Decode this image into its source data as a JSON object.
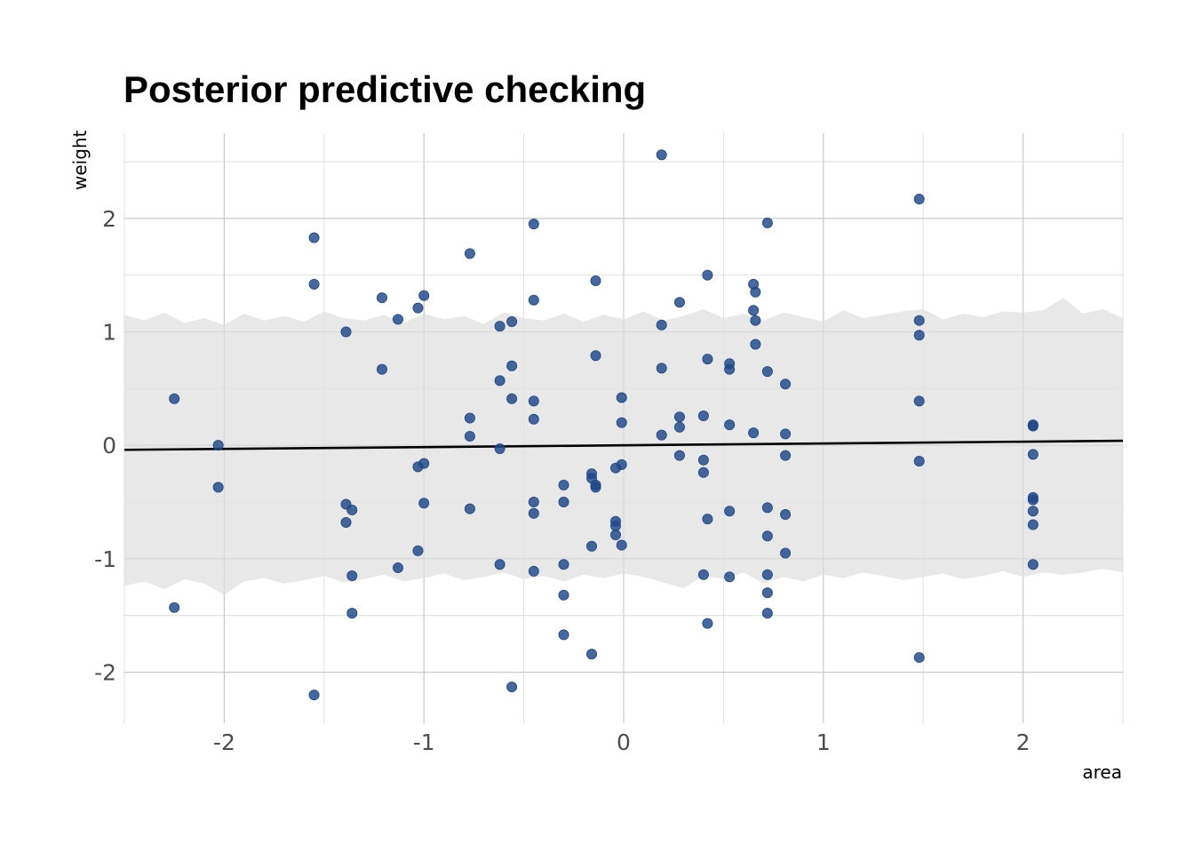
{
  "chart_data": {
    "type": "scatter",
    "title": "Posterior predictive checking",
    "xlabel": "area",
    "ylabel": "weight",
    "xlim": [
      -2.5,
      2.5
    ],
    "ylim": [
      -2.45,
      2.75
    ],
    "grid": true,
    "legend": "none",
    "x_ticks": [
      -2,
      -1,
      0,
      1,
      2
    ],
    "x_tick_labels": [
      "-2",
      "-1",
      "0",
      "1",
      "2"
    ],
    "y_ticks": [
      -2,
      -1,
      0,
      1,
      2
    ],
    "y_tick_labels": [
      "-2",
      "-1",
      "0",
      "1",
      "2"
    ],
    "colors": {
      "points": "#1f4788",
      "band": "#e8e8e8",
      "line": "#000000"
    },
    "regression_line": {
      "x": [
        -2.5,
        2.5
      ],
      "y": [
        -0.04,
        0.04
      ]
    },
    "prediction_band": {
      "x": [
        -2.5,
        -2.4,
        -2.3,
        -2.2,
        -2.1,
        -2.0,
        -1.9,
        -1.8,
        -1.7,
        -1.6,
        -1.5,
        -1.4,
        -1.3,
        -1.2,
        -1.1,
        -1.0,
        -0.9,
        -0.8,
        -0.7,
        -0.6,
        -0.5,
        -0.4,
        -0.3,
        -0.2,
        -0.1,
        0.0,
        0.1,
        0.2,
        0.3,
        0.4,
        0.5,
        0.6,
        0.7,
        0.8,
        0.9,
        1.0,
        1.1,
        1.2,
        1.3,
        1.4,
        1.5,
        1.6,
        1.7,
        1.8,
        1.9,
        2.0,
        2.1,
        2.2,
        2.3,
        2.4,
        2.5
      ],
      "upper": [
        1.15,
        1.1,
        1.17,
        1.08,
        1.12,
        1.06,
        1.16,
        1.1,
        1.14,
        1.09,
        1.18,
        1.12,
        1.1,
        1.15,
        1.08,
        1.16,
        1.11,
        1.14,
        1.07,
        1.17,
        1.12,
        1.1,
        1.16,
        1.09,
        1.15,
        1.11,
        1.18,
        1.1,
        1.14,
        1.2,
        1.12,
        1.16,
        1.1,
        1.17,
        1.13,
        1.09,
        1.19,
        1.12,
        1.15,
        1.18,
        1.2,
        1.11,
        1.16,
        1.13,
        1.18,
        1.17,
        1.19,
        1.3,
        1.16,
        1.2,
        1.12
      ],
      "lower": [
        -1.24,
        -1.2,
        -1.27,
        -1.18,
        -1.22,
        -1.32,
        -1.2,
        -1.17,
        -1.22,
        -1.19,
        -1.15,
        -1.21,
        -1.18,
        -1.14,
        -1.2,
        -1.17,
        -1.13,
        -1.19,
        -1.16,
        -1.12,
        -1.18,
        -1.15,
        -1.2,
        -1.14,
        -1.17,
        -1.13,
        -1.16,
        -1.21,
        -1.26,
        -1.15,
        -1.18,
        -1.12,
        -1.22,
        -1.16,
        -1.2,
        -1.14,
        -1.17,
        -1.12,
        -1.15,
        -1.19,
        -1.16,
        -1.13,
        -1.18,
        -1.15,
        -1.11,
        -1.16,
        -1.12,
        -1.14,
        -1.12,
        -1.09,
        -1.12
      ]
    },
    "points": [
      {
        "x": -2.25,
        "y": 0.41
      },
      {
        "x": -2.25,
        "y": -1.43
      },
      {
        "x": -2.03,
        "y": 0.0
      },
      {
        "x": -2.03,
        "y": -0.37
      },
      {
        "x": -1.55,
        "y": 1.83
      },
      {
        "x": -1.55,
        "y": 1.42
      },
      {
        "x": -1.55,
        "y": -2.2
      },
      {
        "x": -1.39,
        "y": 1.0
      },
      {
        "x": -1.39,
        "y": -0.52
      },
      {
        "x": -1.39,
        "y": -0.68
      },
      {
        "x": -1.36,
        "y": -0.57
      },
      {
        "x": -1.36,
        "y": -1.15
      },
      {
        "x": -1.36,
        "y": -1.48
      },
      {
        "x": -1.21,
        "y": 1.3
      },
      {
        "x": -1.21,
        "y": 0.67
      },
      {
        "x": -1.13,
        "y": 1.11
      },
      {
        "x": -1.13,
        "y": -1.08
      },
      {
        "x": -1.03,
        "y": 1.21
      },
      {
        "x": -1.03,
        "y": -0.19
      },
      {
        "x": -1.03,
        "y": -0.93
      },
      {
        "x": -1.0,
        "y": 1.32
      },
      {
        "x": -1.0,
        "y": -0.16
      },
      {
        "x": -1.0,
        "y": -0.51
      },
      {
        "x": -0.77,
        "y": 1.69
      },
      {
        "x": -0.77,
        "y": 0.24
      },
      {
        "x": -0.77,
        "y": 0.08
      },
      {
        "x": -0.77,
        "y": -0.56
      },
      {
        "x": -0.62,
        "y": 1.05
      },
      {
        "x": -0.62,
        "y": 0.57
      },
      {
        "x": -0.62,
        "y": -0.03
      },
      {
        "x": -0.62,
        "y": -1.05
      },
      {
        "x": -0.56,
        "y": 1.09
      },
      {
        "x": -0.56,
        "y": 0.7
      },
      {
        "x": -0.56,
        "y": 0.41
      },
      {
        "x": -0.56,
        "y": -2.13
      },
      {
        "x": -0.45,
        "y": 1.95
      },
      {
        "x": -0.45,
        "y": 1.28
      },
      {
        "x": -0.45,
        "y": 0.39
      },
      {
        "x": -0.45,
        "y": 0.23
      },
      {
        "x": -0.45,
        "y": -0.5
      },
      {
        "x": -0.45,
        "y": -0.6
      },
      {
        "x": -0.45,
        "y": -1.11
      },
      {
        "x": -0.3,
        "y": -0.35
      },
      {
        "x": -0.3,
        "y": -0.5
      },
      {
        "x": -0.3,
        "y": -1.05
      },
      {
        "x": -0.3,
        "y": -1.32
      },
      {
        "x": -0.3,
        "y": -1.67
      },
      {
        "x": -0.16,
        "y": -0.25
      },
      {
        "x": -0.16,
        "y": -0.29
      },
      {
        "x": -0.16,
        "y": -0.89
      },
      {
        "x": -0.16,
        "y": -1.84
      },
      {
        "x": -0.14,
        "y": 1.45
      },
      {
        "x": -0.14,
        "y": 0.79
      },
      {
        "x": -0.14,
        "y": -0.35
      },
      {
        "x": -0.14,
        "y": -0.37
      },
      {
        "x": -0.04,
        "y": -0.2
      },
      {
        "x": -0.04,
        "y": -0.67
      },
      {
        "x": -0.04,
        "y": -0.71
      },
      {
        "x": -0.04,
        "y": -0.79
      },
      {
        "x": -0.01,
        "y": 0.42
      },
      {
        "x": -0.01,
        "y": 0.2
      },
      {
        "x": -0.01,
        "y": -0.17
      },
      {
        "x": -0.01,
        "y": -0.88
      },
      {
        "x": 0.19,
        "y": 2.56
      },
      {
        "x": 0.19,
        "y": 1.06
      },
      {
        "x": 0.19,
        "y": 0.68
      },
      {
        "x": 0.19,
        "y": 0.09
      },
      {
        "x": 0.28,
        "y": 1.26
      },
      {
        "x": 0.28,
        "y": 0.25
      },
      {
        "x": 0.28,
        "y": 0.16
      },
      {
        "x": 0.28,
        "y": -0.09
      },
      {
        "x": 0.4,
        "y": 0.26
      },
      {
        "x": 0.4,
        "y": -0.13
      },
      {
        "x": 0.4,
        "y": -0.24
      },
      {
        "x": 0.4,
        "y": -1.14
      },
      {
        "x": 0.42,
        "y": 1.5
      },
      {
        "x": 0.42,
        "y": 0.76
      },
      {
        "x": 0.42,
        "y": -0.65
      },
      {
        "x": 0.42,
        "y": -1.57
      },
      {
        "x": 0.53,
        "y": 0.72
      },
      {
        "x": 0.53,
        "y": 0.67
      },
      {
        "x": 0.53,
        "y": 0.18
      },
      {
        "x": 0.53,
        "y": -0.58
      },
      {
        "x": 0.53,
        "y": -1.16
      },
      {
        "x": 0.65,
        "y": 1.42
      },
      {
        "x": 0.65,
        "y": 1.19
      },
      {
        "x": 0.65,
        "y": 0.11
      },
      {
        "x": 0.66,
        "y": 1.35
      },
      {
        "x": 0.66,
        "y": 1.1
      },
      {
        "x": 0.66,
        "y": 0.89
      },
      {
        "x": 0.72,
        "y": 1.96
      },
      {
        "x": 0.72,
        "y": 0.65
      },
      {
        "x": 0.72,
        "y": -0.55
      },
      {
        "x": 0.72,
        "y": -0.8
      },
      {
        "x": 0.72,
        "y": -1.14
      },
      {
        "x": 0.72,
        "y": -1.3
      },
      {
        "x": 0.72,
        "y": -1.48
      },
      {
        "x": 0.81,
        "y": 0.54
      },
      {
        "x": 0.81,
        "y": 0.1
      },
      {
        "x": 0.81,
        "y": -0.09
      },
      {
        "x": 0.81,
        "y": -0.61
      },
      {
        "x": 0.81,
        "y": -0.95
      },
      {
        "x": 1.48,
        "y": 2.17
      },
      {
        "x": 1.48,
        "y": 1.1
      },
      {
        "x": 1.48,
        "y": 0.97
      },
      {
        "x": 1.48,
        "y": 0.39
      },
      {
        "x": 1.48,
        "y": -0.14
      },
      {
        "x": 1.48,
        "y": -1.87
      },
      {
        "x": 2.05,
        "y": 0.18
      },
      {
        "x": 2.05,
        "y": 0.17
      },
      {
        "x": 2.05,
        "y": -0.08
      },
      {
        "x": 2.05,
        "y": -0.46
      },
      {
        "x": 2.05,
        "y": -0.48
      },
      {
        "x": 2.05,
        "y": -0.58
      },
      {
        "x": 2.05,
        "y": -0.7
      },
      {
        "x": 2.05,
        "y": -1.05
      }
    ]
  }
}
